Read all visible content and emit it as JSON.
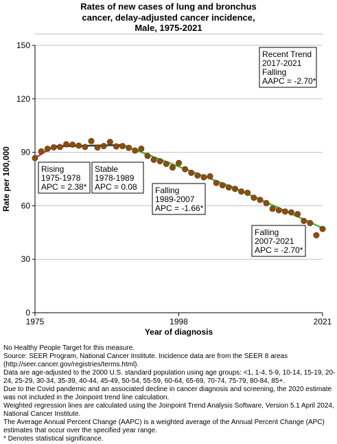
{
  "title_lines": [
    "Rates of new cases of lung and bronchus",
    "cancer, delay-adjusted cancer incidence,",
    "Male,  1975-2021"
  ],
  "chart_data": {
    "type": "scatter",
    "xlabel": "Year of diagnosis",
    "ylabel": "Rate per 100,000",
    "xlim": [
      1975,
      2021
    ],
    "ylim": [
      0,
      150
    ],
    "x_ticks": [
      1975,
      1998,
      2021
    ],
    "y_ticks": [
      0,
      30,
      60,
      90,
      120,
      150
    ],
    "grid": "horizontal",
    "points": [
      {
        "x": 1975,
        "y": 86.8
      },
      {
        "x": 1976,
        "y": 90.5
      },
      {
        "x": 1977,
        "y": 92.0
      },
      {
        "x": 1978,
        "y": 92.8
      },
      {
        "x": 1979,
        "y": 93.0
      },
      {
        "x": 1980,
        "y": 94.5
      },
      {
        "x": 1981,
        "y": 94.3
      },
      {
        "x": 1982,
        "y": 93.7
      },
      {
        "x": 1983,
        "y": 93.0
      },
      {
        "x": 1984,
        "y": 96.3
      },
      {
        "x": 1985,
        "y": 92.7
      },
      {
        "x": 1986,
        "y": 93.5
      },
      {
        "x": 1987,
        "y": 95.8
      },
      {
        "x": 1988,
        "y": 93.3
      },
      {
        "x": 1989,
        "y": 93.5
      },
      {
        "x": 1990,
        "y": 92.5
      },
      {
        "x": 1991,
        "y": 91.0
      },
      {
        "x": 1992,
        "y": 92.0
      },
      {
        "x": 1993,
        "y": 88.0
      },
      {
        "x": 1994,
        "y": 85.8
      },
      {
        "x": 1995,
        "y": 85.0
      },
      {
        "x": 1996,
        "y": 83.5
      },
      {
        "x": 1997,
        "y": 81.5
      },
      {
        "x": 1998,
        "y": 84.0
      },
      {
        "x": 1999,
        "y": 80.5
      },
      {
        "x": 2000,
        "y": 78.5
      },
      {
        "x": 2001,
        "y": 77.0
      },
      {
        "x": 2002,
        "y": 76.0
      },
      {
        "x": 2003,
        "y": 76.5
      },
      {
        "x": 2004,
        "y": 72.8
      },
      {
        "x": 2005,
        "y": 71.5
      },
      {
        "x": 2006,
        "y": 70.3
      },
      {
        "x": 2007,
        "y": 69.5
      },
      {
        "x": 2008,
        "y": 68.0
      },
      {
        "x": 2009,
        "y": 67.3
      },
      {
        "x": 2010,
        "y": 64.5
      },
      {
        "x": 2011,
        "y": 63.3
      },
      {
        "x": 2012,
        "y": 61.5
      },
      {
        "x": 2013,
        "y": 58.3
      },
      {
        "x": 2014,
        "y": 57.5
      },
      {
        "x": 2015,
        "y": 56.8
      },
      {
        "x": 2016,
        "y": 56.3
      },
      {
        "x": 2017,
        "y": 55.3
      },
      {
        "x": 2018,
        "y": 51.5
      },
      {
        "x": 2019,
        "y": 50.3
      },
      {
        "x": 2020,
        "y": 43.5
      },
      {
        "x": 2021,
        "y": 47.0
      }
    ],
    "trend_segments": [
      {
        "label": "Rising",
        "years_text": "1975-1978",
        "apc_text": "APC =  2.38*",
        "start": [
          1975,
          86.9
        ],
        "end": [
          1978,
          93.3
        ],
        "color": "#e0383a"
      },
      {
        "label": "Stable",
        "years_text": "1978-1989",
        "apc_text": "APC =  0.08",
        "start": [
          1978,
          93.3
        ],
        "end": [
          1989,
          94.1
        ],
        "color": "#333333"
      },
      {
        "label": "Falling",
        "years_text": "1989-2007",
        "apc_text": "APC = -1.66*",
        "start": [
          1989,
          94.1
        ],
        "end": [
          2007,
          69.9
        ],
        "color": "#4cb84c"
      },
      {
        "label": "Falling",
        "years_text": "2007-2021",
        "apc_text": "APC = -2.70*",
        "start": [
          2007,
          69.9
        ],
        "end": [
          2021,
          47.5
        ],
        "color": "#4cb84c"
      }
    ],
    "recent_trend": {
      "heading": "Recent Trend",
      "years_text": "2017-2021",
      "direction": "Falling",
      "aapc_text": "AAPC = -2.70*"
    },
    "marker_color": "#8a4e12"
  },
  "notes": [
    "No Healthy People Target for this measure.",
    "Source: SEER Program, National Cancer Institute. Incidence data are from the SEER 8 areas (http://seer.cancer.gov/registries/terms.html).",
    "Data are age-adjusted to the 2000 U.S. standard population using age groups: <1, 1-4, 5-9, 10-14, 15-19, 20-24, 25-29, 30-34, 35-39, 40-44, 45-49, 50-54, 55-59, 60-64, 65-69, 70-74, 75-79, 80-84, 85+.",
    "Due to the Covid pandemic and an associated decline in cancer diagnosis and screening, the 2020 estimate was not included in the Joinpoint trend line calculation.",
    "Weighted regression lines are calculated using the Joinpoint Trend Analysis Software, Version 5.1 April 2024, National Cancer Institute.",
    "The Average Annual Percent Change (AAPC) is a weighted average of the Annual Percent Change (APC) estimates that occur over the specified year range.",
    "* Denotes statistical significance."
  ]
}
